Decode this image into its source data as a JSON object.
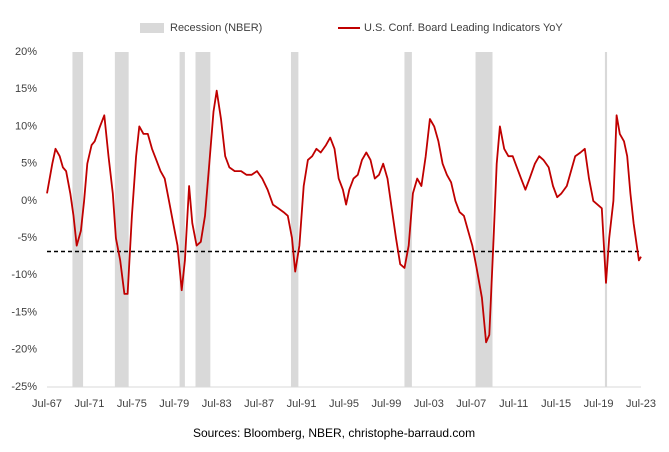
{
  "chart_data": {
    "type": "line",
    "source": "Sources: Bloomberg, NBER, christophe-barraud.com",
    "xlim": [
      1967.5,
      2023.5
    ],
    "xticks": [
      {
        "value": 1967.5,
        "label": "Jul-67"
      },
      {
        "value": 1971.5,
        "label": "Jul-71"
      },
      {
        "value": 1975.5,
        "label": "Jul-75"
      },
      {
        "value": 1979.5,
        "label": "Jul-79"
      },
      {
        "value": 1983.5,
        "label": "Jul-83"
      },
      {
        "value": 1987.5,
        "label": "Jul-87"
      },
      {
        "value": 1991.5,
        "label": "Jul-91"
      },
      {
        "value": 1995.5,
        "label": "Jul-95"
      },
      {
        "value": 1999.5,
        "label": "Jul-99"
      },
      {
        "value": 2003.5,
        "label": "Jul-03"
      },
      {
        "value": 2007.5,
        "label": "Jul-07"
      },
      {
        "value": 2011.5,
        "label": "Jul-11"
      },
      {
        "value": 2015.5,
        "label": "Jul-15"
      },
      {
        "value": 2019.5,
        "label": "Jul-19"
      },
      {
        "value": 2023.5,
        "label": "Jul-23"
      }
    ],
    "ylim": [
      -25,
      20
    ],
    "yticks": [
      {
        "value": 20,
        "label": "20%"
      },
      {
        "value": 15,
        "label": "15%"
      },
      {
        "value": 10,
        "label": "10%"
      },
      {
        "value": 5,
        "label": "5%"
      },
      {
        "value": 0,
        "label": "0%"
      },
      {
        "value": -5,
        "label": "-5%"
      },
      {
        "value": -10,
        "label": "-10%"
      },
      {
        "value": -15,
        "label": "-15%"
      },
      {
        "value": -20,
        "label": "-20%"
      },
      {
        "value": -25,
        "label": "-25%"
      }
    ],
    "grid": false,
    "recession_name": "Recession (NBER)",
    "recession_color": "#d9d9d9",
    "recessions": [
      [
        1969.9,
        1970.9
      ],
      [
        1973.9,
        1975.2
      ],
      [
        1980.0,
        1980.5
      ],
      [
        1981.5,
        1982.9
      ],
      [
        1990.5,
        1991.2
      ],
      [
        2001.2,
        2001.9
      ],
      [
        2007.9,
        2009.5
      ],
      [
        2020.1,
        2020.3
      ]
    ],
    "hline": -6.8,
    "series": [
      {
        "name": "U.S. Conf. Board Leading Indicators YoY",
        "color": "#c00000",
        "x": [
          1967.5,
          1968.0,
          1968.3,
          1968.7,
          1969.0,
          1969.3,
          1969.7,
          1970.0,
          1970.3,
          1970.7,
          1971.0,
          1971.3,
          1971.7,
          1972.0,
          1972.5,
          1972.9,
          1973.3,
          1973.7,
          1974.0,
          1974.4,
          1974.8,
          1975.1,
          1975.5,
          1975.9,
          1976.2,
          1976.6,
          1977.0,
          1977.4,
          1977.8,
          1978.2,
          1978.6,
          1979.0,
          1979.4,
          1979.8,
          1980.2,
          1980.5,
          1980.9,
          1981.2,
          1981.6,
          1982.0,
          1982.4,
          1982.8,
          1983.2,
          1983.5,
          1983.9,
          1984.3,
          1984.7,
          1985.2,
          1985.8,
          1986.3,
          1986.8,
          1987.3,
          1987.8,
          1988.3,
          1988.8,
          1989.3,
          1989.8,
          1990.2,
          1990.6,
          1990.9,
          1991.3,
          1991.7,
          1992.1,
          1992.5,
          1992.9,
          1993.3,
          1993.8,
          1994.2,
          1994.6,
          1995.0,
          1995.4,
          1995.7,
          1996.0,
          1996.4,
          1996.8,
          1997.2,
          1997.6,
          1998.0,
          1998.4,
          1998.8,
          1999.2,
          1999.6,
          2000.0,
          2000.4,
          2000.8,
          2001.2,
          2001.6,
          2002.0,
          2002.4,
          2002.8,
          2003.2,
          2003.6,
          2004.0,
          2004.4,
          2004.8,
          2005.2,
          2005.6,
          2006.0,
          2006.4,
          2006.8,
          2007.2,
          2007.6,
          2008.0,
          2008.5,
          2008.9,
          2009.2,
          2009.6,
          2009.9,
          2010.2,
          2010.6,
          2011.0,
          2011.4,
          2011.8,
          2012.2,
          2012.6,
          2013.0,
          2013.5,
          2013.9,
          2014.3,
          2014.8,
          2015.2,
          2015.6,
          2016.0,
          2016.5,
          2016.9,
          2017.3,
          2017.8,
          2018.2,
          2018.6,
          2019.0,
          2019.4,
          2019.8,
          2020.2,
          2020.5,
          2020.9,
          2021.2,
          2021.5,
          2021.9,
          2022.2,
          2022.5,
          2022.8,
          2023.1,
          2023.3,
          2023.5
        ],
        "values": [
          1,
          5,
          7,
          6,
          4.5,
          4,
          1,
          -2,
          -6,
          -4,
          0,
          5,
          7.5,
          8,
          10,
          11.5,
          6,
          1,
          -5,
          -8,
          -12.5,
          -12.5,
          -2,
          6,
          10,
          9,
          9,
          7,
          5.5,
          4,
          3,
          0,
          -3,
          -6,
          -12,
          -8,
          2,
          -3,
          -6,
          -5.5,
          -2,
          5,
          12,
          14.8,
          11,
          6,
          4.5,
          4,
          4,
          3.5,
          3.5,
          4,
          3,
          1.5,
          -0.5,
          -1,
          -1.5,
          -2,
          -5,
          -9.5,
          -6,
          2,
          5.5,
          6,
          7,
          6.5,
          7.5,
          8.5,
          7,
          3,
          1.5,
          -0.5,
          1.5,
          3,
          3.5,
          5.5,
          6.5,
          5.5,
          3,
          3.5,
          5,
          3,
          -1,
          -5,
          -8.5,
          -9,
          -6,
          1,
          3,
          2,
          6,
          11,
          10,
          8,
          5,
          3.5,
          2.5,
          0,
          -1.5,
          -2,
          -4,
          -6,
          -9,
          -13,
          -19,
          -18,
          -5,
          5,
          10,
          7,
          6,
          6,
          4.5,
          3,
          1.5,
          3,
          5,
          6,
          5.5,
          4.5,
          2,
          0.5,
          1,
          2,
          4,
          6,
          6.5,
          7,
          3,
          0,
          -0.5,
          -1,
          -11,
          -5,
          0,
          11.5,
          9,
          8,
          6,
          1,
          -3,
          -6,
          -8,
          -7.5
        ]
      }
    ]
  }
}
